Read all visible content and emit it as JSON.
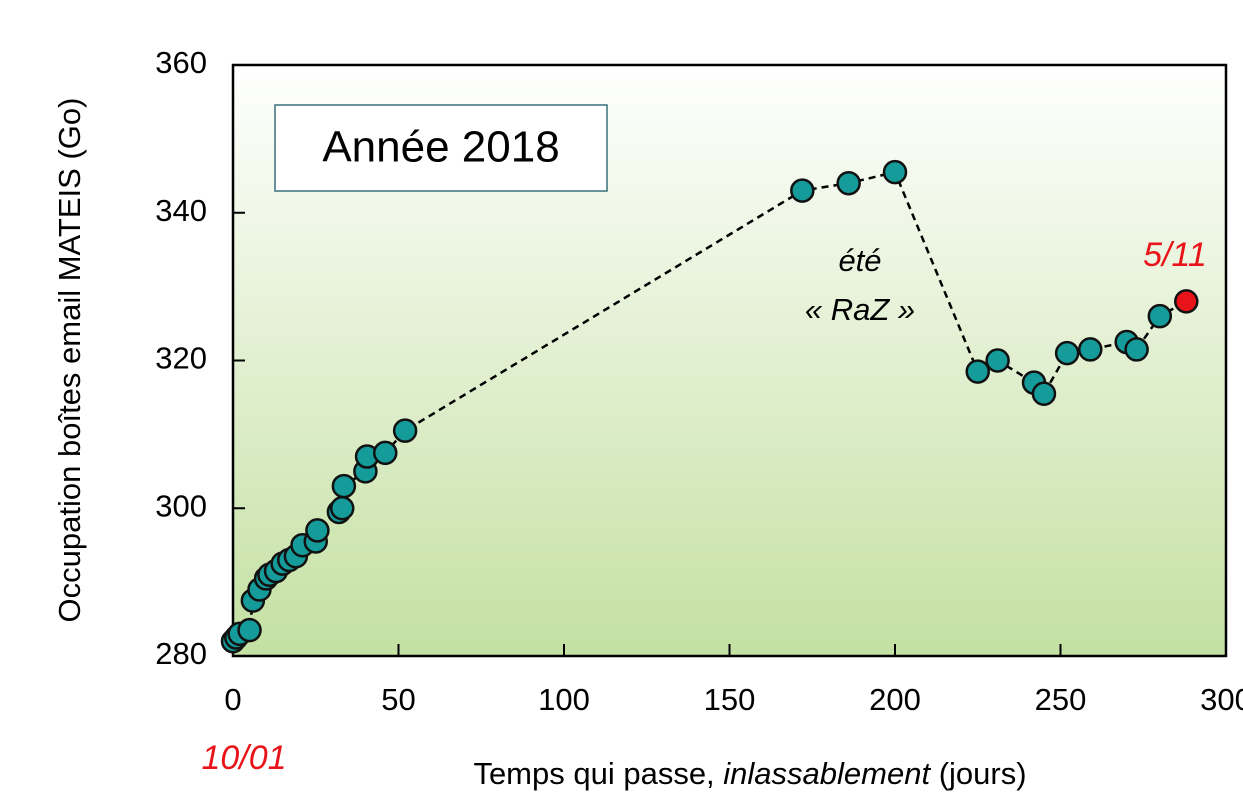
{
  "chart_data": {
    "type": "scatter",
    "ylabel": "Occupation boîtes email MATEIS (Go)",
    "xlabel_parts": [
      "Temps qui passe, ",
      "inlassablement",
      " (jours)"
    ],
    "annotations": {
      "year": "Année 2018",
      "summer": "été",
      "reset": "« RaZ »",
      "end_date": "5/11",
      "start_date": "10/01"
    },
    "xlim": [
      0,
      300
    ],
    "xticks": [
      0,
      50,
      100,
      150,
      200,
      250,
      300
    ],
    "ylim": [
      280,
      360
    ],
    "yticks": [
      280,
      300,
      320,
      340,
      360
    ],
    "color": "#169b9b",
    "last_point_color": "#e8141a",
    "line_style": "dashed",
    "series": [
      {
        "x": [
          0,
          1,
          2,
          5,
          6,
          8,
          10,
          11,
          13,
          15,
          17,
          19,
          21,
          25,
          25.5,
          32,
          33,
          33.5,
          40,
          40.5,
          46,
          52,
          172,
          186,
          200,
          225,
          231,
          242,
          245,
          252,
          259,
          270,
          273,
          280,
          288
        ],
        "values": [
          282,
          282.5,
          283,
          283.5,
          287.5,
          289,
          290.5,
          291,
          291.5,
          292.5,
          293,
          293.5,
          295,
          295.5,
          297,
          299.5,
          300,
          303,
          305,
          307,
          307.5,
          310.5,
          343,
          344,
          345.5,
          318.5,
          320,
          317,
          315.5,
          321,
          321.5,
          322.5,
          321.5,
          326,
          328
        ]
      }
    ]
  }
}
